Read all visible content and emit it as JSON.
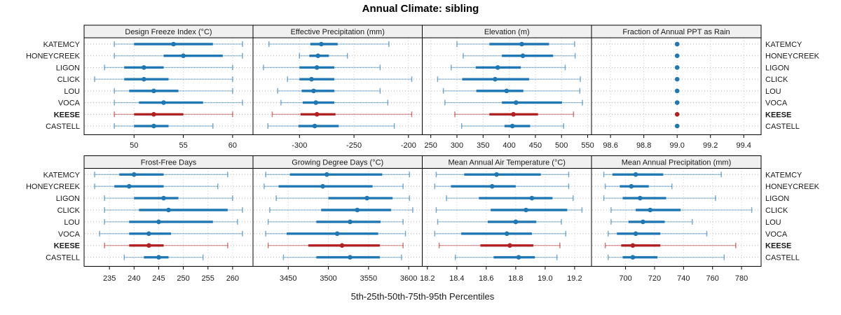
{
  "title": "Annual Climate: sibling",
  "caption": "5th-25th-50th-75th-95th Percentiles",
  "sites": [
    "KATEMCY",
    "HONEYCREEK",
    "LIGON",
    "CLICK",
    "LOU",
    "VOCA",
    "KEESE",
    "CASTELL"
  ],
  "highlight_site": "KEESE",
  "colors": {
    "series_blue": "#1F77B4",
    "highlight_red": "#B22222",
    "strip_bg": "#F0F0F0",
    "panel_border": "#000000",
    "grid_line": "#C9C9C9",
    "row_guide": "#B3B3B3",
    "text": "#1A1A1A"
  },
  "chart_data": [
    {
      "type": "percentile-dotplot",
      "title": "Design Freeze Index (°C)",
      "percentiles": [
        5,
        25,
        50,
        75,
        95
      ],
      "xlim": [
        45,
        62
      ],
      "ticks": [
        50,
        55,
        60
      ],
      "tick_labels": [
        "50",
        "55",
        "60"
      ],
      "values": [
        [
          48,
          50,
          54,
          58,
          61
        ],
        [
          48,
          53,
          55,
          59,
          61
        ],
        [
          47,
          49,
          51,
          53,
          60
        ],
        [
          46,
          49,
          51,
          53.5,
          60
        ],
        [
          48,
          49.5,
          52,
          54.5,
          60
        ],
        [
          48,
          50.5,
          53,
          57,
          61
        ],
        [
          48,
          50,
          52,
          55,
          60
        ],
        [
          48,
          50,
          52,
          53.5,
          58
        ]
      ]
    },
    {
      "type": "percentile-dotplot",
      "title": "Effective Precipitation (mm)",
      "percentiles": [
        5,
        25,
        50,
        75,
        95
      ],
      "xlim": [
        -342,
        -188
      ],
      "ticks": [
        -300,
        -250,
        -200
      ],
      "tick_labels": [
        "-300",
        "-250",
        "-200"
      ],
      "values": [
        [
          -328,
          -290,
          -280,
          -265,
          -218
        ],
        [
          -300,
          -291,
          -283,
          -273,
          -256
        ],
        [
          -333,
          -300,
          -284,
          -268,
          -226
        ],
        [
          -311,
          -300,
          -289,
          -268,
          -197
        ],
        [
          -320,
          -298,
          -287,
          -268,
          -226
        ],
        [
          -317,
          -297,
          -285,
          -268,
          -219
        ],
        [
          -325,
          -299,
          -284,
          -267,
          -197
        ],
        [
          -329,
          -301,
          -286,
          -264,
          -213
        ]
      ]
    },
    {
      "type": "percentile-dotplot",
      "title": "Elevation (m)",
      "percentiles": [
        5,
        25,
        50,
        75,
        95
      ],
      "xlim": [
        235,
        556
      ],
      "ticks": [
        250,
        300,
        350,
        400,
        450,
        500,
        550
      ],
      "tick_labels": [
        "250",
        "300",
        "350",
        "400",
        "450",
        "500",
        "550"
      ],
      "values": [
        [
          300,
          362,
          424,
          476,
          525
        ],
        [
          312,
          386,
          426,
          484,
          526
        ],
        [
          289,
          336,
          378,
          422,
          507
        ],
        [
          263,
          310,
          373,
          438,
          536
        ],
        [
          274,
          337,
          395,
          427,
          535
        ],
        [
          277,
          386,
          413,
          501,
          540
        ],
        [
          296,
          362,
          408,
          455,
          523
        ],
        [
          309,
          391,
          406,
          440,
          504
        ]
      ]
    },
    {
      "type": "percentile-dotplot",
      "title": "Fraction of Annual PPT as Rain",
      "percentiles": [
        5,
        25,
        50,
        75,
        95
      ],
      "xlim": [
        98.49,
        99.5
      ],
      "ticks": [
        98.6,
        98.8,
        99.0,
        99.2,
        99.4
      ],
      "tick_labels": [
        "98.6",
        "98.8",
        "99.0",
        "99.2",
        "99.4"
      ],
      "values": [
        [
          99.0,
          99.0,
          99.0,
          99.0,
          99.0
        ],
        [
          99.0,
          99.0,
          99.0,
          99.0,
          99.0
        ],
        [
          99.0,
          99.0,
          99.0,
          99.0,
          99.0
        ],
        [
          99.0,
          99.0,
          99.0,
          99.0,
          99.0
        ],
        [
          99.0,
          99.0,
          99.0,
          99.0,
          99.0
        ],
        [
          99.0,
          99.0,
          99.0,
          99.0,
          99.0
        ],
        [
          99.0,
          99.0,
          99.0,
          99.0,
          99.0
        ],
        [
          99.0,
          99.0,
          99.0,
          99.0,
          99.0
        ]
      ]
    },
    {
      "type": "percentile-dotplot",
      "title": "Frost-Free Days",
      "percentiles": [
        5,
        25,
        50,
        75,
        95
      ],
      "xlim": [
        230,
        264
      ],
      "ticks": [
        235,
        240,
        245,
        250,
        255,
        260
      ],
      "tick_labels": [
        "235",
        "240",
        "245",
        "250",
        "255",
        "260"
      ],
      "values": [
        [
          232,
          237,
          240,
          246,
          259
        ],
        [
          232,
          236,
          239,
          246,
          257
        ],
        [
          234,
          240,
          246,
          249,
          260
        ],
        [
          234,
          241,
          247,
          259,
          262
        ],
        [
          234,
          239,
          245,
          256,
          261
        ],
        [
          233,
          239,
          243,
          247.5,
          262
        ],
        [
          234,
          239,
          243,
          246,
          259
        ],
        [
          238,
          242,
          245,
          247,
          254
        ]
      ]
    },
    {
      "type": "percentile-dotplot",
      "title": "Growing Degree Days (°C)",
      "percentiles": [
        5,
        25,
        50,
        75,
        95
      ],
      "xlim": [
        3407,
        3616
      ],
      "ticks": [
        3450,
        3500,
        3550,
        3600
      ],
      "tick_labels": [
        "3450",
        "3500",
        "3550",
        "3600"
      ],
      "values": [
        [
          3422,
          3452,
          3498,
          3567,
          3601
        ],
        [
          3420,
          3438,
          3493,
          3555,
          3593
        ],
        [
          3435,
          3500,
          3548,
          3580,
          3601
        ],
        [
          3427,
          3491,
          3536,
          3578,
          3605
        ],
        [
          3425,
          3485,
          3527,
          3565,
          3593
        ],
        [
          3422,
          3448,
          3511,
          3562,
          3596
        ],
        [
          3425,
          3475,
          3517,
          3564,
          3593
        ],
        [
          3444,
          3485,
          3527,
          3564,
          3591
        ]
      ]
    },
    {
      "type": "percentile-dotplot",
      "title": "Mean Annual Air Temperature (°C)",
      "percentiles": [
        5,
        25,
        50,
        75,
        95
      ],
      "xlim": [
        18.17,
        19.31
      ],
      "ticks": [
        18.2,
        18.4,
        18.6,
        18.8,
        19.0,
        19.2
      ],
      "tick_labels": [
        "18.2",
        "18.4",
        "18.6",
        "18.8",
        "19.0",
        "19.2"
      ],
      "values": [
        [
          18.26,
          18.45,
          18.67,
          18.97,
          19.16
        ],
        [
          18.25,
          18.36,
          18.64,
          18.8,
          19.16
        ],
        [
          18.33,
          18.55,
          18.91,
          19.05,
          19.19
        ],
        [
          18.26,
          18.63,
          18.87,
          19.15,
          19.25
        ],
        [
          18.27,
          18.61,
          18.8,
          18.94,
          19.11
        ],
        [
          18.25,
          18.43,
          18.74,
          18.91,
          19.14
        ],
        [
          18.28,
          18.56,
          18.76,
          18.92,
          19.1
        ],
        [
          18.39,
          18.65,
          18.82,
          18.93,
          19.08
        ]
      ]
    },
    {
      "type": "percentile-dotplot",
      "title": "Mean Annual Precipitation (mm)",
      "percentiles": [
        5,
        25,
        50,
        75,
        95
      ],
      "xlim": [
        677,
        793
      ],
      "ticks": [
        700,
        720,
        740,
        760,
        780
      ],
      "tick_labels": [
        "700",
        "720",
        "740",
        "760",
        "780"
      ],
      "values": [
        [
          685,
          691,
          707,
          726,
          766
        ],
        [
          686,
          696,
          704,
          716,
          732
        ],
        [
          685,
          698,
          710,
          728,
          762
        ],
        [
          690,
          707,
          717,
          738,
          787
        ],
        [
          690,
          702,
          712,
          727,
          746
        ],
        [
          688,
          694,
          707,
          724,
          756
        ],
        [
          686,
          697,
          705,
          724,
          776
        ],
        [
          688,
          698,
          705,
          722,
          768
        ]
      ]
    }
  ]
}
